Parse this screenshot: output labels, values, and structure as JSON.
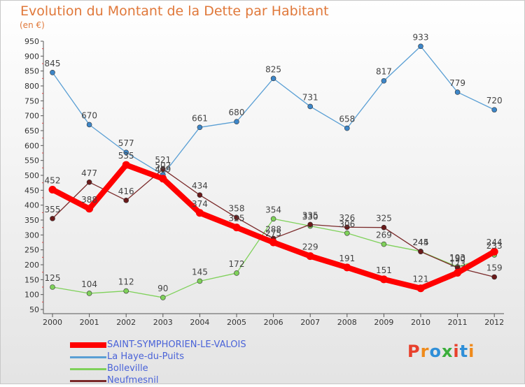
{
  "header": {
    "title": "Evolution du Montant de la Dette par Habitant",
    "subtitle": "(en €)"
  },
  "brand": {
    "text": "Proxiti",
    "colors": [
      "#e8402c",
      "#ef8a1a",
      "#2f8fd8",
      "#3bae3b",
      "#e8402c",
      "#2f8fd8",
      "#ef8a1a"
    ]
  },
  "chart_data": {
    "type": "line",
    "x": [
      "2000",
      "2001",
      "2002",
      "2003",
      "2004",
      "2005",
      "2006",
      "2007",
      "2008",
      "2009",
      "2010",
      "2011",
      "2012"
    ],
    "ylim": [
      50,
      950
    ],
    "yticks": [
      50,
      100,
      150,
      200,
      250,
      300,
      350,
      400,
      450,
      500,
      550,
      600,
      650,
      700,
      750,
      800,
      850,
      900,
      950
    ],
    "grid": false,
    "legend_position": "bottom-left",
    "series": [
      {
        "name": "SAINT-SYMPHORIEN-LE-VALOIS",
        "color": "#ff0000",
        "marker_color": "#ff0000",
        "emphasis": true,
        "values": [
          452,
          388,
          535,
          489,
          374,
          325,
          275,
          229,
          191,
          151,
          121,
          173,
          244
        ]
      },
      {
        "name": "La Haye-du-Puits",
        "color": "#5a9fd4",
        "marker_color": "#3d86c8",
        "values": [
          845,
          670,
          577,
          502,
          661,
          680,
          825,
          731,
          658,
          817,
          933,
          779,
          720
        ]
      },
      {
        "name": "Bolleville",
        "color": "#7fd15a",
        "marker_color": "#7fd15a",
        "values": [
          125,
          104,
          112,
          90,
          145,
          172,
          354,
          330,
          306,
          269,
          245,
          193,
          233
        ]
      },
      {
        "name": "Neufmesnil",
        "color": "#7a2a2a",
        "marker_color": "#6a1a1a",
        "values": [
          355,
          477,
          416,
          521,
          434,
          358,
          288,
          335,
          326,
          325,
          244,
          190,
          159
        ]
      }
    ]
  }
}
